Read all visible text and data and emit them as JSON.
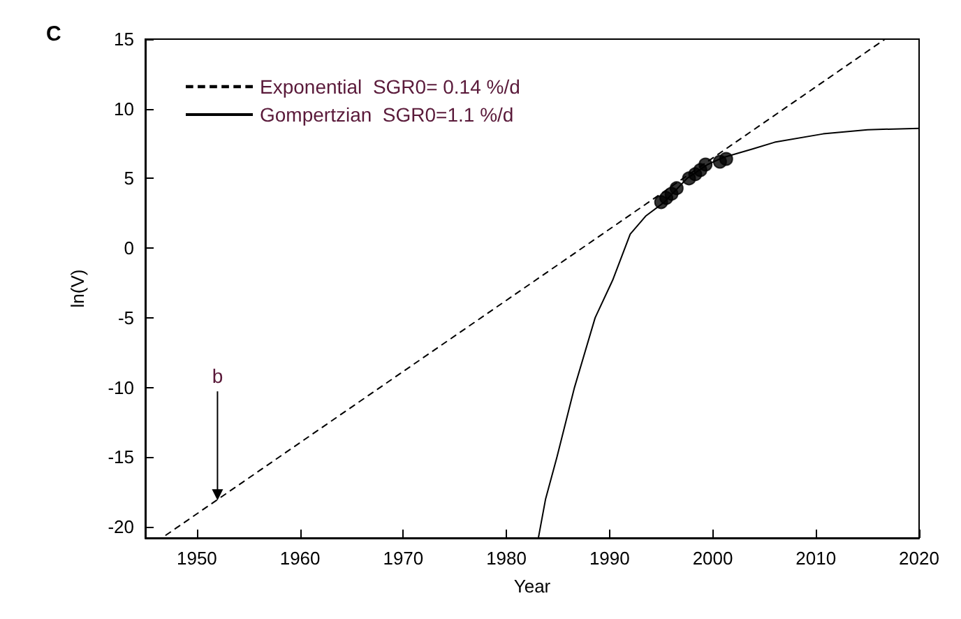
{
  "chart_data": {
    "type": "line",
    "title": "C",
    "xlabel": "Year",
    "ylabel": "ln(V)",
    "xlim": [
      1945,
      2020
    ],
    "ylim": [
      -20.8,
      15
    ],
    "xticks": [
      1950,
      1960,
      1970,
      1980,
      1990,
      2000,
      2010,
      2020
    ],
    "yticks": [
      -20,
      -15,
      -10,
      -5,
      0,
      5,
      10,
      15
    ],
    "grid": false,
    "legend": "top left",
    "series": [
      {
        "name": "Exponential  SGR0= 0.14 %/d",
        "line_style": "dashed",
        "color": "#000000",
        "x": [
          1947,
          2016.7
        ],
        "values": [
          -20.6,
          15
        ]
      },
      {
        "name": "Gompertzian  SGR0=1.1 %/d",
        "line_style": "solid",
        "color": "#000000",
        "x": [
          1983.1,
          1983.8,
          1984.9,
          1986.6,
          1988.6,
          1990.3,
          1992,
          1993.5,
          1995.3,
          1997.5,
          1999.5,
          2001,
          2003.8,
          2006,
          2010.7,
          2015,
          2020
        ],
        "values": [
          -20.8,
          -18,
          -15,
          -10,
          -5,
          -2.3,
          1,
          2.3,
          3.3,
          5,
          6,
          6.5,
          7.1,
          7.6,
          8.2,
          8.5,
          8.6
        ]
      },
      {
        "type": "scatter",
        "marker": "circle",
        "color": "#000000",
        "x": [
          1995,
          1995.5,
          1996,
          1996.5,
          1997.7,
          1998.3,
          1998.8,
          1999.3,
          2000.7,
          2001.3
        ],
        "values": [
          3.3,
          3.6,
          3.9,
          4.3,
          5.0,
          5.3,
          5.6,
          6.0,
          6.2,
          6.4
        ]
      }
    ],
    "annotations": [
      {
        "text": "b",
        "x": 1952,
        "y": -18.1
      }
    ]
  }
}
